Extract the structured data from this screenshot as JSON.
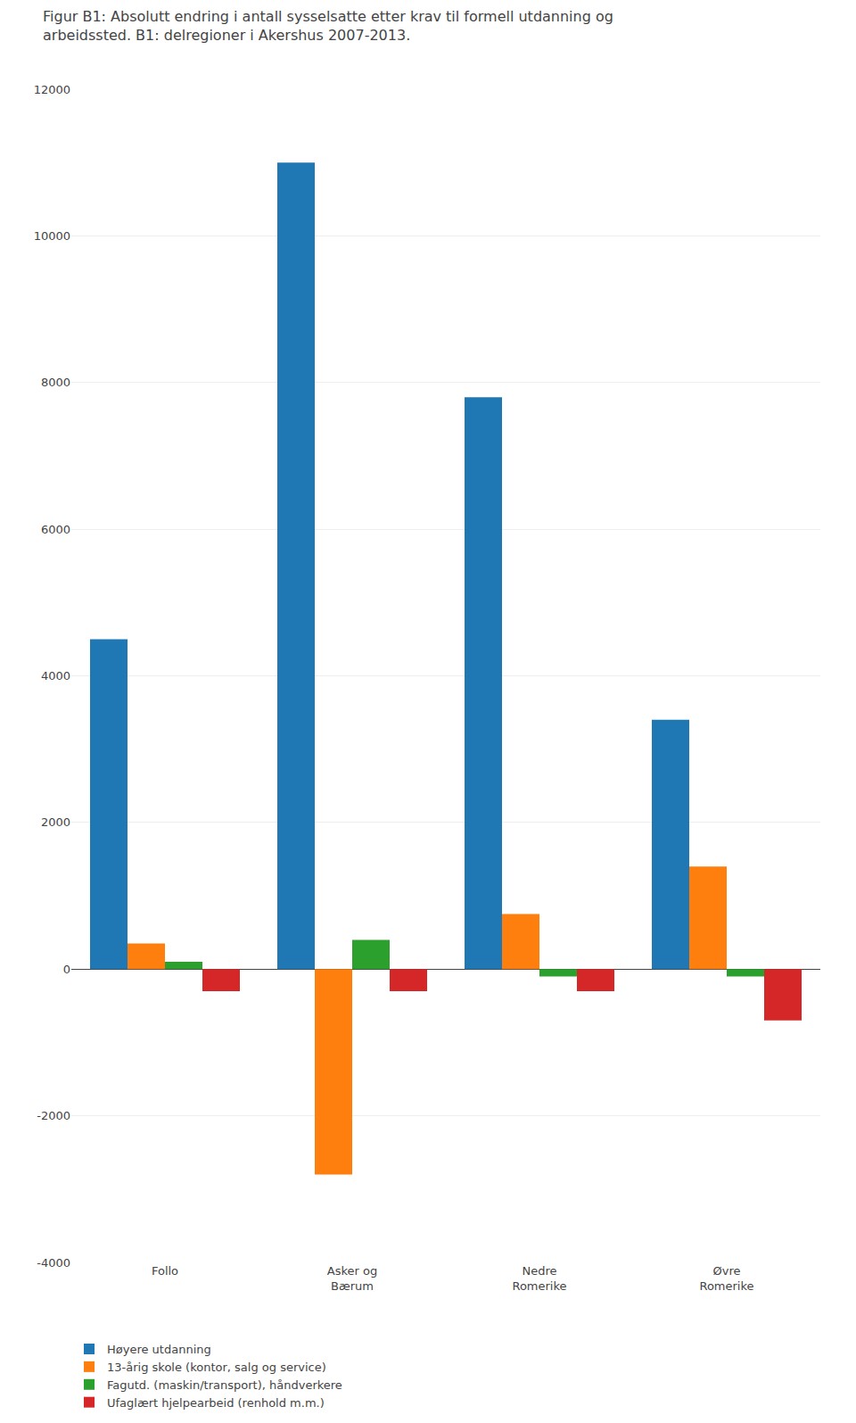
{
  "chart_data": {
    "type": "bar",
    "title": "Figur B1: Absolutt endring i antall sysselsatte etter krav til formell utdanning og arbeidssted. B1: delregioner i Akershus 2007-2013.",
    "categories": [
      "Follo",
      "Asker og\nBærum",
      "Nedre\nRomerike",
      "Øvre\nRomerike"
    ],
    "series": [
      {
        "name": "Høyere utdanning",
        "values": [
          4500,
          11000,
          7800,
          3400
        ]
      },
      {
        "name": "13-årig skole (kontor, salg og service)",
        "values": [
          350,
          -2800,
          750,
          1400
        ]
      },
      {
        "name": "Fagutd. (maskin/transport), håndverkere",
        "values": [
          100,
          400,
          -100,
          -100
        ]
      },
      {
        "name": "Ufaglært hjelpearbeid (renhold m.m.)",
        "values": [
          -300,
          -300,
          -300,
          -700
        ]
      }
    ],
    "ylim": [
      -4000,
      12000
    ],
    "yticks": [
      -4000,
      -2000,
      0,
      2000,
      4000,
      6000,
      8000,
      10000,
      12000
    ],
    "grid": true,
    "legend": "bottom"
  }
}
